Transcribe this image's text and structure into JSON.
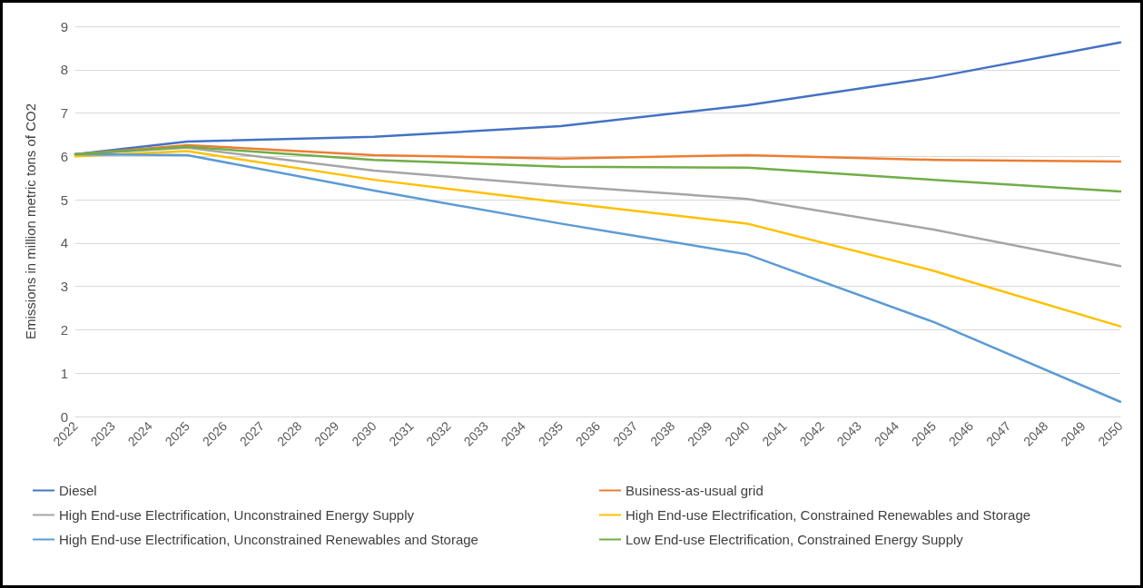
{
  "chart_data": {
    "type": "line",
    "ylabel": "Emissions in million metric tons of CO2",
    "series": [
      {
        "name": "Diesel",
        "color": "#4472c4",
        "x": [
          2022,
          2025,
          2030,
          2035,
          2040,
          2045,
          2050
        ],
        "values": [
          6.05,
          6.34,
          6.45,
          6.7,
          7.18,
          7.82,
          8.63
        ]
      },
      {
        "name": "Business-as-usual grid",
        "color": "#ed7d31",
        "x": [
          2022,
          2025,
          2030,
          2035,
          2040,
          2045,
          2050
        ],
        "values": [
          6.05,
          6.26,
          6.03,
          5.95,
          6.03,
          5.92,
          5.88
        ]
      },
      {
        "name": "High End-use Electrification, Unconstrained Energy Supply",
        "color": "#a5a5a5",
        "x": [
          2022,
          2025,
          2030,
          2035,
          2040,
          2045,
          2050
        ],
        "values": [
          6.05,
          6.2,
          5.67,
          5.32,
          5.02,
          4.31,
          3.47
        ]
      },
      {
        "name": "High End-use Electrification, Constrained Renewables and Storage",
        "color": "#ffc000",
        "x": [
          2022,
          2025,
          2030,
          2035,
          2040,
          2045,
          2050
        ],
        "values": [
          6.0,
          6.12,
          5.46,
          4.94,
          4.45,
          3.36,
          2.08
        ]
      },
      {
        "name": "High End-use Electrification, Unconstrained Renewables and Storage",
        "color": "#5b9bd5",
        "x": [
          2022,
          2025,
          2030,
          2035,
          2040,
          2045,
          2050
        ],
        "values": [
          6.05,
          6.03,
          5.21,
          4.45,
          3.74,
          2.18,
          0.34
        ]
      },
      {
        "name": "Low End-use Electrification, Constrained Energy Supply",
        "color": "#70ad47",
        "x": [
          2022,
          2025,
          2030,
          2035,
          2040,
          2045,
          2050
        ],
        "values": [
          6.05,
          6.22,
          5.92,
          5.76,
          5.74,
          5.46,
          5.19
        ]
      }
    ],
    "xlim": [
      2022,
      2050
    ],
    "xticks": [
      2022,
      2023,
      2024,
      2025,
      2026,
      2027,
      2028,
      2029,
      2030,
      2031,
      2032,
      2033,
      2034,
      2035,
      2036,
      2037,
      2038,
      2039,
      2040,
      2041,
      2042,
      2043,
      2044,
      2045,
      2046,
      2047,
      2048,
      2049,
      2050
    ],
    "ylim": [
      0,
      9
    ],
    "yticks": [
      0,
      1,
      2,
      3,
      4,
      5,
      6,
      7,
      8,
      9
    ],
    "grid": "y",
    "legend": "bottom",
    "marker": "none",
    "line_style": "solid"
  }
}
